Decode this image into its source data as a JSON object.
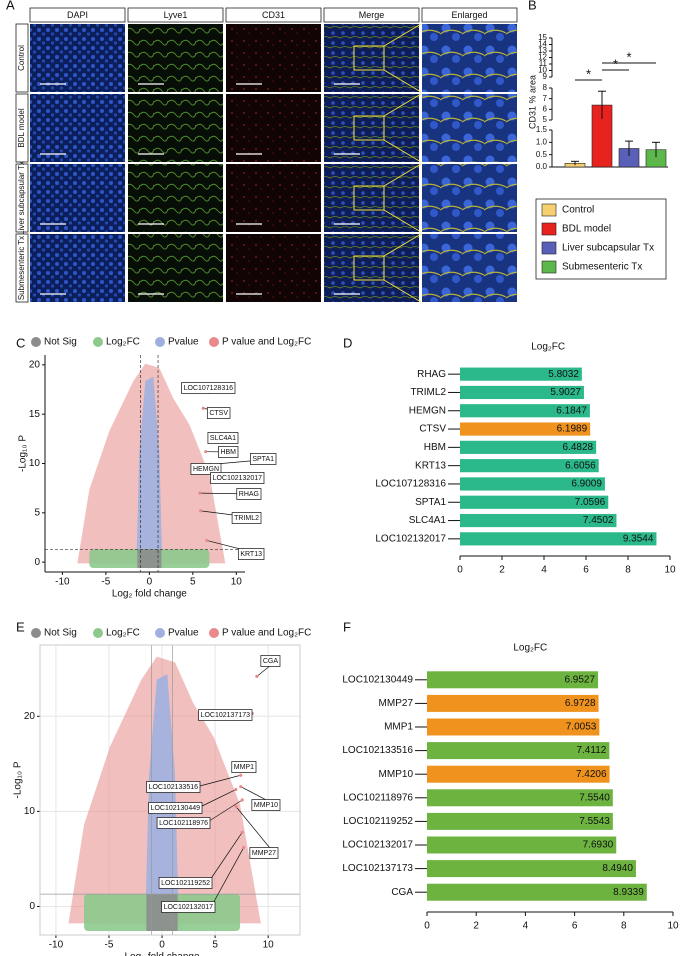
{
  "panel_labels": [
    "A",
    "B",
    "C",
    "D",
    "E",
    "F"
  ],
  "panel_a": {
    "columns": [
      "DAPI",
      "Lyve1",
      "CD31",
      "Merge",
      "Enlarged"
    ],
    "header_colors": [
      "#3a6fd8",
      "#6a9a2a",
      "#e02020",
      "#e0891a",
      "#111111"
    ],
    "rows": [
      "Control",
      "BDL model",
      "Liver subcapsular Tx",
      "Submesenteric Tx"
    ]
  },
  "chart_data": [
    {
      "type": "bar",
      "ylabel": "CD31 % area",
      "ylim": [
        0,
        15
      ],
      "y_segments": [
        [
          0,
          1.5
        ],
        [
          5,
          8
        ],
        [
          9,
          15
        ]
      ],
      "yticks": [
        {
          "value": 0,
          "label": "0.0"
        },
        {
          "value": 0.5,
          "label": "0.5"
        },
        {
          "value": 1,
          "label": "1.0"
        },
        {
          "value": 1.5,
          "label": "1.5"
        },
        5,
        6,
        7,
        8,
        9,
        10,
        11,
        12,
        13,
        14,
        15
      ],
      "series": [
        {
          "name": "Control",
          "color": "#f6cf6e",
          "values": [
            0.15
          ],
          "errors": [
            0.08
          ]
        },
        {
          "name": "BDL model",
          "color": "#e8231f",
          "values": [
            6.4
          ],
          "errors": [
            1.3
          ]
        },
        {
          "name": "Liver subcapsular Tx",
          "color": "#5a5fb8",
          "values": [
            0.75
          ],
          "errors": [
            0.3
          ]
        },
        {
          "name": "Submesenteric Tx",
          "color": "#5cb84a",
          "values": [
            0.7
          ],
          "errors": [
            0.3
          ]
        }
      ],
      "annotations": [
        "*",
        "*",
        "*"
      ]
    },
    {
      "type": "volcano",
      "xlabel": "Log₂ fold change",
      "ylabel": "-Log₁₀ P",
      "xlim": [
        -12,
        11
      ],
      "ylim": [
        -1,
        21
      ],
      "xticks": [
        -10,
        -5,
        0,
        5,
        10
      ],
      "yticks": [
        0,
        5,
        10,
        15,
        20
      ],
      "grid": false,
      "thresholds": {
        "x": [
          -1,
          1
        ],
        "y": 1.3
      },
      "legend": [
        {
          "name": "Not Sig",
          "color": "#8c8c8c"
        },
        {
          "name": "Log₂FC",
          "color": "#8dc98d"
        },
        {
          "name": "Pvalue",
          "color": "#9fb0e0"
        },
        {
          "name": "P value and Log₂FC",
          "color": "#e88a8a"
        }
      ],
      "points": {
        "labels": [
          "LOC107128316",
          "CTSV",
          "SLC4A1",
          "HBM",
          "SPTA1",
          "HEMGN",
          "LOC102132017",
          "RHAG",
          "TRIML2",
          "KRT13"
        ],
        "x": [
          6.9009,
          6.1989,
          7.4502,
          6.4828,
          7.0596,
          6.1847,
          9.3544,
          5.8032,
          5.9027,
          6.6056
        ],
        "y": [
          17.2,
          15.6,
          12.3,
          11.2,
          9.9,
          9.7,
          8.1,
          7.0,
          5.2,
          2.2
        ]
      }
    },
    {
      "type": "hbar",
      "title": "Log₂FC",
      "xlim": [
        0,
        10
      ],
      "xticks": [
        0,
        2,
        4,
        6,
        8,
        10
      ],
      "categories": [
        "RHAG",
        "TRIML2",
        "HEMGN",
        "CTSV",
        "HBM",
        "KRT13",
        "LOC107128316",
        "SPTA1",
        "SLC4A1",
        "LOC102132017"
      ],
      "values": [
        5.8032,
        5.9027,
        6.1847,
        6.1989,
        6.4828,
        6.6056,
        6.9009,
        7.0596,
        7.4502,
        9.3544
      ],
      "value_labels": [
        "5.8032",
        "5.9027",
        "6.1847",
        "6.1989",
        "6.4828",
        "6.6056",
        "6.9009",
        "7.0596",
        "7.4502",
        "9.3544"
      ],
      "colors": [
        "#2bb88a",
        "#2bb88a",
        "#2bb88a",
        "#f0921e",
        "#2bb88a",
        "#2bb88a",
        "#2bb88a",
        "#2bb88a",
        "#2bb88a",
        "#2bb88a"
      ]
    },
    {
      "type": "volcano",
      "xlabel": "Log₂ fold change",
      "ylabel": "-Log₁₀ P",
      "xlim": [
        -11.5,
        13
      ],
      "ylim": [
        -3,
        27.5
      ],
      "xticks": [
        -10,
        -5,
        0,
        5,
        10
      ],
      "yticks": [
        0,
        10,
        20
      ],
      "grid": true,
      "thresholds": {
        "x": [
          -1,
          1
        ],
        "y": 1.3
      },
      "legend": [
        {
          "name": "Not Sig",
          "color": "#8c8c8c"
        },
        {
          "name": "Log₂FC",
          "color": "#8dc98d"
        },
        {
          "name": "Pvalue",
          "color": "#9fb0e0"
        },
        {
          "name": "P value and Log₂FC",
          "color": "#e88a8a"
        }
      ],
      "points": {
        "labels": [
          "CGA",
          "LOC102137173",
          "MMP1",
          "LOC102133516",
          "MMP10",
          "LOC102130449",
          "LOC102118976",
          "MMP27",
          "LOC102119252",
          "LOC102132017"
        ],
        "x": [
          8.9339,
          8.494,
          7.0053,
          7.4112,
          7.4206,
          6.9527,
          7.554,
          6.9728,
          7.5543,
          7.693
        ],
        "y": [
          24.2,
          20.3,
          14.8,
          13.8,
          12.6,
          12.3,
          11.2,
          10.5,
          7.8,
          6.2
        ]
      }
    },
    {
      "type": "hbar",
      "title": "Log₂FC",
      "xlim": [
        0,
        10
      ],
      "xticks": [
        0,
        2,
        4,
        6,
        8,
        10
      ],
      "categories": [
        "LOC102130449",
        "MMP27",
        "MMP1",
        "LOC102133516",
        "MMP10",
        "LOC102118976",
        "LOC102119252",
        "LOC102132017",
        "LOC102137173",
        "CGA"
      ],
      "values": [
        6.9527,
        6.9728,
        7.0053,
        7.4112,
        7.4206,
        7.554,
        7.5543,
        7.693,
        8.494,
        8.9339
      ],
      "value_labels": [
        "6.9527",
        "6.9728",
        "7.0053",
        "7.4112",
        "7.4206",
        "7.5540",
        "7.5543",
        "7.6930",
        "8.4940",
        "8.9339"
      ],
      "colors": [
        "#6db33f",
        "#f0921e",
        "#f0921e",
        "#6db33f",
        "#f0921e",
        "#6db33f",
        "#6db33f",
        "#6db33f",
        "#6db33f",
        "#6db33f"
      ]
    }
  ]
}
